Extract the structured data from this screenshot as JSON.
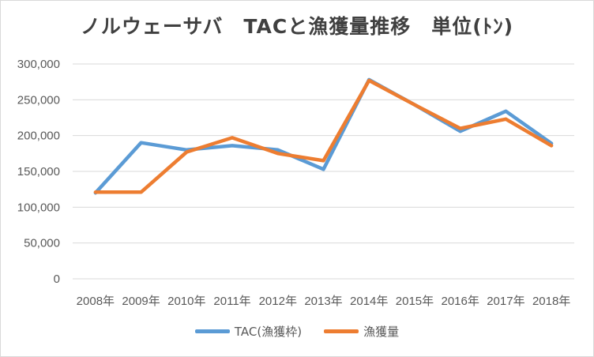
{
  "chart_data": {
    "type": "line",
    "title": "ノルウェーサバ　TACと漁獲量推移　単位(ﾄﾝ)",
    "xlabel": "",
    "ylabel": "",
    "categories": [
      "2008年",
      "2009年",
      "2010年",
      "2011年",
      "2012年",
      "2013年",
      "2014年",
      "2015年",
      "2016年",
      "2017年",
      "2018年"
    ],
    "ylim": [
      0,
      300000
    ],
    "y_ticks": [
      "0",
      "50,000",
      "100,000",
      "150,000",
      "200,000",
      "250,000",
      "300,000"
    ],
    "grid": true,
    "legend_position": "bottom",
    "series": [
      {
        "name": "TAC(漁獲枠)",
        "color": "#5b9bd5",
        "values": [
          120000,
          190000,
          180000,
          186000,
          180000,
          153000,
          278000,
          243000,
          206000,
          234000,
          189000
        ]
      },
      {
        "name": "漁獲量",
        "color": "#ed7d31",
        "values": [
          121000,
          121000,
          177000,
          197000,
          175000,
          165000,
          277000,
          243000,
          210000,
          223000,
          186000
        ]
      }
    ]
  }
}
